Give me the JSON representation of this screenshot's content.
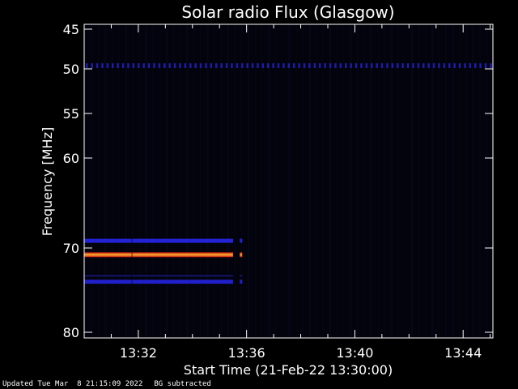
{
  "chart_data": {
    "type": "heatmap",
    "title": "Solar radio Flux (Glasgow)",
    "xlabel": "Start Time (21-Feb-22 13:30:00)",
    "ylabel": "Frequency [MHz]",
    "x_unit": "minutes after 13:30:00",
    "xlim": [
      0,
      15.1
    ],
    "ylim": [
      80,
      45
    ],
    "y_ticks": [
      45,
      50,
      55,
      60,
      70,
      80
    ],
    "x_ticks": [
      {
        "minute": 2,
        "label": "13:32"
      },
      {
        "minute": 6,
        "label": "13:36"
      },
      {
        "minute": 10,
        "label": "13:40"
      },
      {
        "minute": 14,
        "label": "13:44"
      }
    ],
    "bands": [
      {
        "freq": 49.6,
        "x_start": 0,
        "x_end": 15.1,
        "intensity": "medium",
        "color": "#1c1ca8",
        "dotted": true
      },
      {
        "freq": 69.2,
        "x_start": 0,
        "x_end": 5.5,
        "intensity": "medium",
        "color": "#2323d6"
      },
      {
        "freq": 70.8,
        "x_start": 0,
        "x_end": 5.5,
        "intensity": "high",
        "color": "#ff3a1a"
      },
      {
        "freq": 74.0,
        "x_start": 0,
        "x_end": 5.5,
        "intensity": "medium",
        "color": "#2020c8"
      },
      {
        "freq": 73.3,
        "x_start": 0,
        "x_end": 5.5,
        "intensity": "low",
        "color": "#14146a"
      }
    ],
    "background_color": "#03030c",
    "axis_color": "#ffffff"
  },
  "footer": {
    "updated": "Updated Tue Mar  8 21:15:09 2022",
    "note": "BG subtracted"
  }
}
